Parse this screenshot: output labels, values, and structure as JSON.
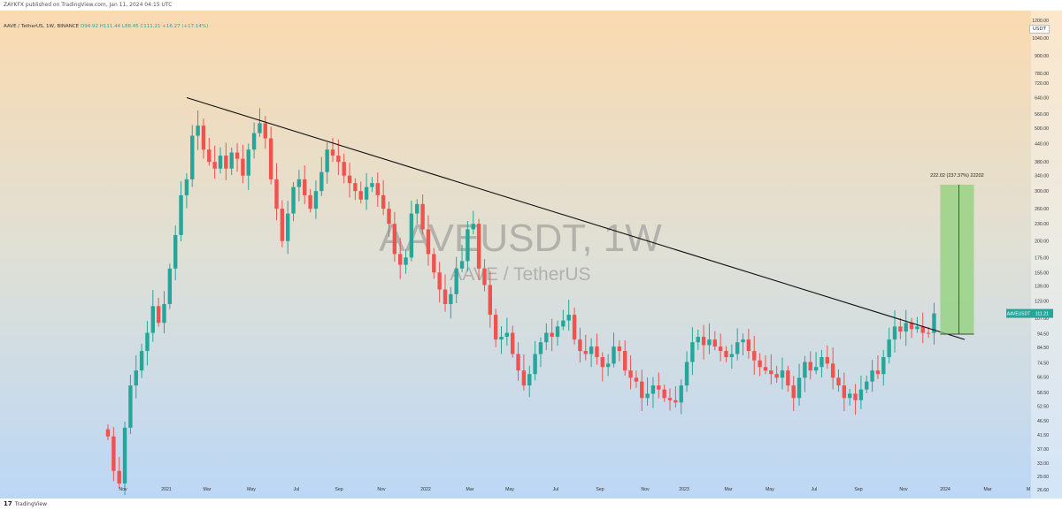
{
  "publisher_line": "ZAYKFX published on TradingView.com, Jan 11, 2024 04:15 UTC",
  "symbol_info": {
    "symbol": "AAVE / TetherUS, 1W, BINANCE",
    "open": "O94.92",
    "high": "H111.44",
    "low": "L88.45",
    "close": "C111.21",
    "change": "+16.27 (+17.14%)"
  },
  "currency_button": "USDT",
  "watermark": {
    "symbol": "AAVEUSDT, 1W",
    "name": "AAVE / TetherUS"
  },
  "price_label": {
    "ticker": "AAVEUSDT",
    "price": "111.21"
  },
  "measure_label": "222.02 (237.37%) 22202",
  "footer_logo": "TradingView",
  "colors": {
    "up": "#26a69a",
    "down": "#ef5350",
    "bg_top": "#f9d9b0",
    "bg_bottom": "#bcd8f6",
    "trendline": "#111111",
    "measure_fill": "#8fd07a"
  },
  "chart_data": {
    "type": "candlestick",
    "scale": "log",
    "ylim": [
      25.5,
      1260
    ],
    "x_ticks": [
      "Nov",
      "2021",
      "Mar",
      "May",
      "Jul",
      "Sep",
      "Nov",
      "2022",
      "Mar",
      "May",
      "Jul",
      "Sep",
      "Nov",
      "2023",
      "Mar",
      "May",
      "Jul",
      "Sep",
      "Nov",
      "2024",
      "Mar",
      "M"
    ],
    "y_ticks": [
      "1200.00",
      "1040.00",
      "900.00",
      "780.00",
      "720.00",
      "640.00",
      "560.00",
      "500.00",
      "440.00",
      "380.00",
      "340.00",
      "300.00",
      "260.00",
      "230.00",
      "200.00",
      "175.00",
      "155.00",
      "139.00",
      "123.00",
      "107.00",
      "94.50",
      "84.50",
      "74.50",
      "66.50",
      "58.50",
      "52.50",
      "46.50",
      "41.50",
      "37.00",
      "33.00",
      "29.60",
      "26.60"
    ],
    "closes": [
      41,
      31,
      28,
      44,
      62,
      70,
      82,
      95,
      118,
      103,
      120,
      160,
      210,
      290,
      330,
      470,
      510,
      420,
      380,
      360,
      400,
      360,
      410,
      390,
      340,
      420,
      480,
      520,
      460,
      330,
      260,
      200,
      250,
      310,
      330,
      290,
      260,
      300,
      350,
      420,
      400,
      380,
      340,
      320,
      300,
      280,
      310,
      320,
      290,
      260,
      230,
      180,
      165,
      175,
      250,
      270,
      220,
      180,
      155,
      135,
      120,
      130,
      160,
      170,
      220,
      230,
      160,
      140,
      110,
      90,
      92,
      95,
      80,
      70,
      62,
      68,
      80,
      88,
      95,
      92,
      100,
      105,
      110,
      90,
      82,
      80,
      85,
      78,
      72,
      74,
      85,
      82,
      70,
      66,
      64,
      56,
      58,
      62,
      60,
      56,
      55,
      54,
      62,
      75,
      88,
      92,
      86,
      90,
      85,
      82,
      78,
      80,
      88,
      90,
      82,
      76,
      72,
      70,
      68,
      66,
      70,
      62,
      56,
      66,
      75,
      70,
      72,
      78,
      74,
      66,
      62,
      56,
      58,
      55,
      60,
      64,
      70,
      68,
      78,
      90,
      100,
      96,
      103,
      98,
      100,
      95,
      94.92,
      111.21
    ],
    "trendline": [
      {
        "date": "Feb 2021",
        "price": 640
      },
      {
        "date": "Jan 2024",
        "price": 90
      }
    ],
    "measure": {
      "from": 94,
      "to": 316,
      "label": "222.02 (237.37%) 22202"
    },
    "last_price": 111.21
  }
}
